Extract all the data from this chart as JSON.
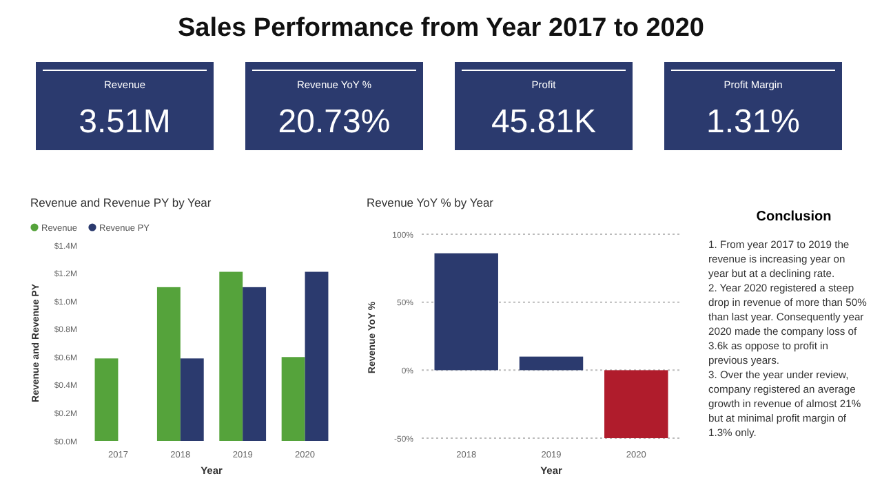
{
  "chart_data": [
    {
      "type": "other",
      "title": "Sales Performance from Year 2017 to 2020",
      "categories": [
        "Revenue",
        "Revenue YoY %",
        "Profit",
        "Profit Margin"
      ],
      "value_labels": [
        "3.51M",
        "20.73%",
        "45.81K",
        "1.31%"
      ],
      "color": "#2b3a6e"
    },
    {
      "type": "bar",
      "title": "Revenue and Revenue PY by Year",
      "categories": [
        "2017",
        "2018",
        "2019",
        "2020"
      ],
      "xlabel": "Year",
      "ylabel": "Revenue and Revenue PY",
      "ylim": [
        0,
        1.4
      ],
      "yticks": [
        {
          "value": 0,
          "label": "$0.0M"
        },
        {
          "value": 0.2,
          "label": "$0.2M"
        },
        {
          "value": 0.4,
          "label": "$0.4M"
        },
        {
          "value": 0.6,
          "label": "$0.6M"
        },
        {
          "value": 0.8,
          "label": "$0.8M"
        },
        {
          "value": 1.0,
          "label": "$1.0M"
        },
        {
          "value": 1.2,
          "label": "$1.2M"
        },
        {
          "value": 1.4,
          "label": "$1.4M"
        }
      ],
      "legend": "top left",
      "series": [
        {
          "name": "Revenue",
          "color": "#55a33b",
          "values": [
            0.59,
            1.1,
            1.21,
            0.6
          ]
        },
        {
          "name": "Revenue PY",
          "color": "#2b3a6e",
          "values": [
            null,
            0.59,
            1.1,
            1.21
          ]
        }
      ]
    },
    {
      "type": "bar",
      "title": "Revenue YoY % by Year",
      "categories": [
        "2018",
        "2019",
        "2020"
      ],
      "xlabel": "Year",
      "ylabel": "Revenue YoY %",
      "ylim": [
        -52,
        100
      ],
      "yticks": [
        {
          "value": -50,
          "label": "-50%"
        },
        {
          "value": 0,
          "label": "0%"
        },
        {
          "value": 50,
          "label": "50%"
        },
        {
          "value": 100,
          "label": "100%"
        }
      ],
      "grid": "y",
      "values": [
        86,
        10,
        -50
      ],
      "colors": [
        "#2b3a6e",
        "#2b3a6e",
        "#b01c2c"
      ]
    },
    {
      "type": "other",
      "title": "Conclusion",
      "annotations": [
        "1. From year 2017 to 2019 the revenue is increasing year on year but at a declining rate.",
        "2. Year 2020 registered a steep drop in revenue of more than 50% than last year. Consequently year 2020 made the company loss of  3.6k as oppose to profit in previous years.",
        "3.  Over the year under review, company registered an average growth in revenue of almost 21% but at minimal profit margin of 1.3% only."
      ]
    }
  ]
}
